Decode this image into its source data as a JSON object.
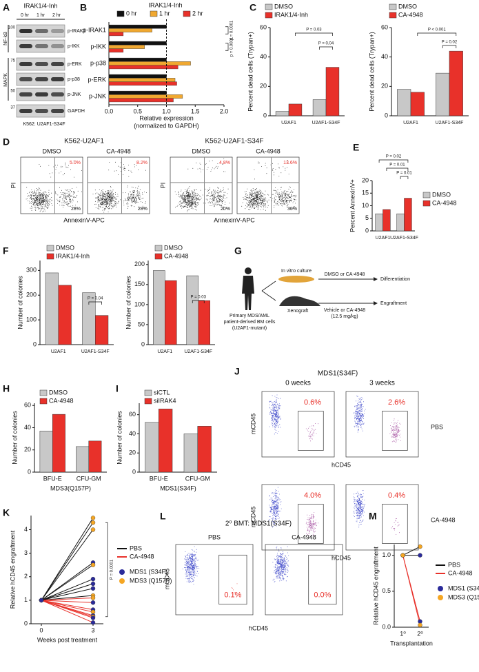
{
  "panel_letters": [
    "A",
    "B",
    "C",
    "D",
    "E",
    "F",
    "G",
    "H",
    "I",
    "J",
    "K",
    "L",
    "M"
  ],
  "blot": {
    "title": "IRAK1/4-Inh",
    "lanes": [
      "0 hr",
      "1 hr",
      "2 hr"
    ],
    "proteins": [
      "p-IRAK1",
      "p-IKK",
      "p-ERK",
      "p-p38",
      "p-JNK",
      "GAPDH"
    ],
    "groups": [
      "NF-kB",
      "MAPK"
    ],
    "markers": [
      100,
      75,
      50,
      37
    ],
    "caption": "K562: U2AF1-S34F"
  },
  "flow_annexin": {
    "row_titles": [
      "K562-U2AF1",
      "K562-U2AF1-S34F"
    ],
    "xlabel": "AnnexinV-APC",
    "ylabel": "PI",
    "plots": [
      {
        "title": "DMSO",
        "upper": "5.0%",
        "lower": "28%"
      },
      {
        "title": "CA-4948",
        "upper": "8.2%",
        "lower": "28%"
      },
      {
        "title": "DMSO",
        "upper": "4.8%",
        "lower": "20%"
      },
      {
        "title": "CA-4948",
        "upper": "13.6%",
        "lower": "30%"
      }
    ]
  },
  "diagram": {
    "source": [
      "Primary MDS/AML",
      "patient-derived BM cells",
      "(U2AF1-mutant)"
    ],
    "culture": "In vitro culture",
    "culture_treatment": "DMSO or CA-4948",
    "culture_outcome": "Differentiation",
    "xenograft": "Xenograft",
    "xenograft_treatment": [
      "Vehicle or CA-4948",
      "(12.5 mg/kg)"
    ],
    "xenograft_outcome": "Engraftment"
  },
  "flow_xenograft": {
    "title": "MDS1(S34F)",
    "columns": [
      "0 weeks",
      "3 weeks"
    ],
    "rows": [
      "PBS",
      "CA-4948"
    ],
    "percentages": [
      "0.6%",
      "2.6%",
      "4.0%",
      "0.4%"
    ],
    "xlabel": "hCD45",
    "ylabel": "mCD45"
  },
  "flow_secondary": {
    "title": "2⁰ BMT: MDS1(S34F)",
    "columns": [
      "PBS",
      "CA-4948"
    ],
    "percentages": [
      "0.1%",
      "0.0%"
    ],
    "xlabel": "hCD45",
    "ylabel": "mCD45"
  },
  "chart_data": [
    {
      "type": "hbar",
      "title": "IRAK1/4-Inh",
      "xlabel": [
        "Relative expression",
        "(normalized to GAPDH)"
      ],
      "categories": [
        "p-IRAK1",
        "p-IKK",
        "p-p38",
        "p-ERK",
        "p-JNK"
      ],
      "series": [
        {
          "name": "0 hr",
          "color": "#111111",
          "values": [
            1,
            1,
            1,
            1,
            1
          ]
        },
        {
          "name": "1 hr",
          "color": "#f0a830",
          "values": [
            0.75,
            0.62,
            1.42,
            1.15,
            1.28
          ]
        },
        {
          "name": "2 hr",
          "color": "#e8312a",
          "values": [
            0.25,
            0.25,
            1.2,
            1.18,
            1.12
          ]
        }
      ],
      "xlim": [
        0,
        2
      ],
      "xticks": [
        {
          "value": 0,
          "label": "0.0"
        },
        {
          "value": 0.5,
          "label": "0.5"
        },
        {
          "value": 1,
          "label": "1.0"
        },
        {
          "value": 1.5,
          "label": "1.5"
        },
        {
          "value": 2,
          "label": "2.0"
        }
      ],
      "reference_line": 1,
      "annotations": [
        "p = 0.0001",
        "p = 0.0001"
      ]
    },
    {
      "type": "bar",
      "ylabel": "Percent dead cells (Trypan+)",
      "categories": [
        "U2AF1",
        "U2AF1-S34F"
      ],
      "series": [
        {
          "name": "DMSO",
          "color": "#c8c8c8",
          "values": [
            3,
            11
          ]
        },
        {
          "name": "IRAK1/4-Inh",
          "color": "#e8312a",
          "values": [
            8,
            33
          ]
        }
      ],
      "ylim": [
        0,
        60
      ],
      "yticks": [
        0,
        20,
        40,
        60
      ],
      "annotations": [
        "P = 0.03",
        "P = 0.04"
      ]
    },
    {
      "type": "bar",
      "ylabel": "Percent dead cells (Trypan+)",
      "categories": [
        "U2AF1",
        "U2AF1-S34F"
      ],
      "series": [
        {
          "name": "DMSO",
          "color": "#c8c8c8",
          "values": [
            18,
            29
          ]
        },
        {
          "name": "CA-4948",
          "color": "#e8312a",
          "values": [
            16,
            44
          ]
        }
      ],
      "ylim": [
        0,
        60
      ],
      "yticks": [
        0,
        20,
        40,
        60
      ],
      "annotations": [
        "P < 0.001",
        "P = 0.02"
      ]
    },
    {
      "type": "bar",
      "ylabel": "Percent AnnexinV+",
      "categories": [
        "U2AF1",
        "U2AF1-S34F"
      ],
      "series": [
        {
          "name": "DMSO",
          "color": "#c8c8c8",
          "values": [
            6.8,
            6.8
          ]
        },
        {
          "name": "CA-4948",
          "color": "#e8312a",
          "values": [
            8.5,
            13
          ]
        }
      ],
      "ylim": [
        0,
        20
      ],
      "yticks": [
        0,
        5,
        10,
        15,
        20
      ],
      "annotations": [
        "P = 0.02",
        "P = 0.01",
        "P = 0.01"
      ]
    },
    {
      "type": "bar",
      "ylabel": "Number of colonies",
      "categories": [
        "U2AF1",
        "U2AF1-S34F"
      ],
      "series": [
        {
          "name": "DMSO",
          "color": "#c8c8c8",
          "values": [
            290,
            210
          ]
        },
        {
          "name": "IRAK1/4-Inh",
          "color": "#e8312a",
          "values": [
            240,
            118
          ]
        }
      ],
      "ylim": [
        0,
        340
      ],
      "yticks": [
        0,
        100,
        200,
        300
      ],
      "annotations": [
        "P = 0.04"
      ]
    },
    {
      "type": "bar",
      "ylabel": "Number of colonies",
      "categories": [
        "U2AF1",
        "U2AF1-S34F"
      ],
      "series": [
        {
          "name": "DMSO",
          "color": "#c8c8c8",
          "values": [
            185,
            172
          ]
        },
        {
          "name": "CA-4948",
          "color": "#e8312a",
          "values": [
            160,
            110
          ]
        }
      ],
      "ylim": [
        0,
        210
      ],
      "yticks": [
        0,
        50,
        100,
        150,
        200
      ],
      "annotations": [
        "P = 0.03"
      ]
    },
    {
      "type": "bar",
      "ylabel": "Number of colonies",
      "xlabel": "MDS3(Q157P)",
      "categories": [
        "BFU-E",
        "CFU-GM"
      ],
      "series": [
        {
          "name": "DMSO",
          "color": "#c8c8c8",
          "values": [
            37,
            23
          ]
        },
        {
          "name": "CA-4948",
          "color": "#e8312a",
          "values": [
            52,
            28
          ]
        }
      ],
      "ylim": [
        0,
        62
      ],
      "yticks": [
        0,
        20,
        40,
        60
      ]
    },
    {
      "type": "bar",
      "ylabel": "Number of colonies",
      "xlabel": "MDS1(S34F)",
      "categories": [
        "BFU-E",
        "CFU-GM"
      ],
      "series": [
        {
          "name": "siCTL",
          "color": "#c8c8c8",
          "values": [
            52,
            40
          ]
        },
        {
          "name": "siIRAK4",
          "color": "#e8312a",
          "values": [
            66,
            48
          ]
        }
      ],
      "ylim": [
        0,
        72
      ],
      "yticks": [
        0,
        20,
        40,
        60
      ]
    },
    {
      "type": "line",
      "ylabel": "Relative hCD45 engraftment",
      "xlabel": "Weeks post treatment",
      "x": [
        0,
        3
      ],
      "xlim": [
        -0.6,
        3.6
      ],
      "xticks": [
        0,
        3
      ],
      "ylim": [
        0,
        4.6
      ],
      "yticks": [
        0,
        1,
        2,
        3,
        4
      ],
      "series": [
        {
          "name": "PBS",
          "color": "#111111",
          "lines": [
            [
              1,
              4.5
            ],
            [
              1,
              4.3
            ],
            [
              1,
              4.0
            ],
            [
              1,
              2.6
            ],
            [
              1,
              2.5
            ],
            [
              1,
              1.9
            ],
            [
              1,
              1.7
            ],
            [
              1,
              1.5
            ],
            [
              1,
              1.2
            ]
          ],
          "marker_colors": [
            "#f5a623",
            "#f5a623",
            "#f5a623",
            "#2b2b9a",
            "#f5a623",
            "#2b2b9a",
            "#2b2b9a",
            "#2b2b9a",
            "#f5a623"
          ]
        },
        {
          "name": "CA-4948",
          "color": "#e8312a",
          "lines": [
            [
              1,
              1.1
            ],
            [
              1,
              0.9
            ],
            [
              1,
              0.6
            ],
            [
              1,
              0.5
            ],
            [
              1,
              0.35
            ],
            [
              1,
              0.3
            ],
            [
              1,
              0.25
            ],
            [
              1,
              0.05
            ]
          ],
          "marker_colors": [
            "#f5a623",
            "#2b2b9a",
            "#2b2b9a",
            "#f5a623",
            "#2b2b9a",
            "#f5a623",
            "#2b2b9a",
            "#2b2b9a"
          ]
        }
      ],
      "marker_legend": [
        {
          "name": "MDS1 (S34F)",
          "color": "#2b2b9a"
        },
        {
          "name": "MDS3 (Q157P)",
          "color": "#f5a623"
        }
      ],
      "annotations": [
        "P = 0.0001"
      ]
    },
    {
      "type": "line",
      "ylabel": "Relative hCD45 engraftment",
      "xlabel": "Transplantation",
      "categories": [
        "1⁰",
        "2⁰"
      ],
      "ylim": [
        0,
        1.15
      ],
      "yticks": [
        {
          "value": 0,
          "label": "0.0"
        },
        {
          "value": 0.5,
          "label": "0.5"
        },
        {
          "value": 1,
          "label": "1.0"
        }
      ],
      "series": [
        {
          "name": "PBS",
          "color": "#111111",
          "lines": [
            [
              1,
              1.0
            ],
            [
              1,
              1.12
            ]
          ],
          "marker_colors": [
            "#2b2b9a",
            "#f5a623"
          ]
        },
        {
          "name": "CA-4948",
          "color": "#e8312a",
          "lines": [
            [
              1,
              0.08
            ],
            [
              1,
              0.03
            ]
          ],
          "marker_colors": [
            "#2b2b9a",
            "#f5a623"
          ]
        }
      ],
      "marker_legend": [
        {
          "name": "MDS1 (S34F)",
          "color": "#2b2b9a"
        },
        {
          "name": "MDS3 (Q157P)",
          "color": "#f5a623"
        }
      ]
    }
  ]
}
